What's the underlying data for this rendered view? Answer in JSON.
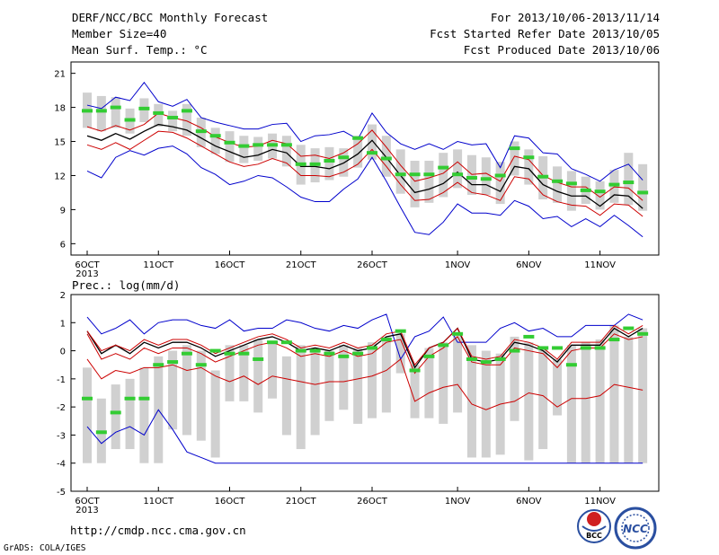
{
  "header": {
    "title": "DERF/NCC/BCC Monthly Forecast",
    "member_size": "Member Size=40",
    "variable": "Mean Surf. Temp.: °C",
    "period": "For 2013/10/06-2013/11/14",
    "fcst_started": "Fcst Started Refer Date 2013/10/05",
    "fcst_produced": "Fcst Produced Date 2013/10/06"
  },
  "footer": {
    "url": "http://cmdp.ncc.cma.gov.cn",
    "grads": "GrADS: COLA/IGES",
    "logo_bcc": "BCC",
    "logo_ncc": "NCC"
  },
  "colors": {
    "envelope": "#0000cc",
    "spread": "#cc0000",
    "mean": "#000000",
    "box": "#d0d0d0",
    "median": "#33cc33"
  },
  "chart_data": [
    {
      "type": "line",
      "title": "",
      "ylabel": "",
      "ylim": [
        5,
        22
      ],
      "yticks": [
        6,
        9,
        12,
        15,
        18,
        21
      ],
      "xlabels": [
        {
          "day": 1,
          "label": "6OCT"
        },
        {
          "day": 6,
          "label": "11OCT"
        },
        {
          "day": 11,
          "label": "16OCT"
        },
        {
          "day": 16,
          "label": "21OCT"
        },
        {
          "day": 21,
          "label": "26OCT"
        },
        {
          "day": 27,
          "label": "1NOV"
        },
        {
          "day": 32,
          "label": "6NOV"
        },
        {
          "day": 37,
          "label": "11NOV"
        }
      ],
      "year_label": "2013",
      "x": [
        1,
        2,
        3,
        4,
        5,
        6,
        7,
        8,
        9,
        10,
        11,
        12,
        13,
        14,
        15,
        16,
        17,
        18,
        19,
        20,
        21,
        22,
        23,
        24,
        25,
        26,
        27,
        28,
        29,
        30,
        31,
        32,
        33,
        34,
        35,
        36,
        37,
        38,
        39,
        40
      ],
      "series": [
        {
          "role": "max",
          "values": [
            12.4,
            11.8,
            13.6,
            14.2,
            13.8,
            14.4,
            14.6,
            13.9,
            12.7,
            12.1,
            11.2,
            11.5,
            12.0,
            11.8,
            11.0,
            10.1,
            9.7,
            9.7,
            10.8,
            11.7,
            13.6,
            11.5,
            9.2,
            7.0,
            6.8,
            7.9,
            9.5,
            8.7,
            8.7,
            8.5,
            9.8,
            9.3,
            8.2,
            8.4,
            7.5,
            8.2,
            7.5,
            8.5,
            7.6,
            6.6
          ]
        },
        {
          "role": "max",
          "values": [
            18.2,
            17.9,
            18.9,
            18.6,
            20.2,
            18.5,
            18.1,
            18.7,
            17.1,
            16.7,
            16.4,
            16.1,
            16.1,
            16.5,
            16.6,
            15.0,
            15.5,
            15.6,
            15.9,
            15.2,
            17.5,
            15.8,
            14.8,
            14.3,
            14.8,
            14.3,
            15.0,
            14.7,
            14.8,
            12.7,
            15.5,
            15.3,
            14.0,
            13.9,
            12.6,
            12.1,
            11.5,
            12.5,
            13.0,
            11.6
          ]
        },
        {
          "role": "mean",
          "values": [
            15.5,
            15.1,
            15.7,
            15.2,
            15.9,
            16.5,
            16.3,
            16.0,
            15.3,
            14.6,
            14.1,
            13.6,
            13.8,
            14.3,
            14.0,
            12.8,
            12.8,
            12.6,
            13.1,
            13.9,
            15.1,
            13.6,
            12.0,
            10.5,
            10.8,
            11.3,
            12.3,
            11.2,
            11.2,
            10.6,
            12.8,
            12.6,
            11.2,
            10.6,
            10.2,
            10.2,
            9.3,
            10.3,
            10.2,
            9.1
          ]
        },
        {
          "role": "spread_high",
          "values": [
            16.3,
            15.9,
            16.4,
            16.0,
            16.5,
            17.5,
            17.1,
            16.8,
            16.2,
            15.4,
            14.9,
            14.5,
            14.6,
            15.1,
            14.8,
            13.7,
            13.8,
            13.5,
            14.0,
            14.8,
            16.0,
            14.5,
            12.9,
            11.5,
            11.8,
            12.2,
            13.2,
            12.1,
            12.2,
            11.5,
            13.7,
            13.4,
            12.0,
            11.4,
            11.0,
            11.0,
            10.1,
            11.0,
            10.9,
            9.8
          ]
        },
        {
          "role": "spread_low",
          "values": [
            14.7,
            14.3,
            14.9,
            14.3,
            15.1,
            15.9,
            15.8,
            15.3,
            14.6,
            13.9,
            13.2,
            12.8,
            13.0,
            13.5,
            13.1,
            12.0,
            12.0,
            11.9,
            12.3,
            13.0,
            14.3,
            12.8,
            11.2,
            9.8,
            9.9,
            10.5,
            11.4,
            10.5,
            10.3,
            9.8,
            11.9,
            11.7,
            10.3,
            9.7,
            9.4,
            9.3,
            8.5,
            9.5,
            9.4,
            8.4
          ]
        }
      ],
      "boxes": {
        "low": [
          16.2,
          15.9,
          16.2,
          15.7,
          16.7,
          16.3,
          15.9,
          15.5,
          14.5,
          13.9,
          13.2,
          13.1,
          13.3,
          13.5,
          12.8,
          11.2,
          11.4,
          11.6,
          11.9,
          12.7,
          13.4,
          11.9,
          10.4,
          9.2,
          9.6,
          10.1,
          10.9,
          10.3,
          10.3,
          9.5,
          12.0,
          11.2,
          9.9,
          9.6,
          8.9,
          9.5,
          9.0,
          9.6,
          9.4,
          8.9
        ],
        "high": [
          19.3,
          19.0,
          18.9,
          17.9,
          18.8,
          18.3,
          17.7,
          18.3,
          17.1,
          16.2,
          15.9,
          15.5,
          15.4,
          15.7,
          15.5,
          14.7,
          14.4,
          14.5,
          14.4,
          15.5,
          16.5,
          15.5,
          14.3,
          13.3,
          13.3,
          14.0,
          14.3,
          13.8,
          13.6,
          13.2,
          15.0,
          14.3,
          13.7,
          12.8,
          12.4,
          11.9,
          11.5,
          12.5,
          14.0,
          13.0
        ],
        "median": [
          17.7,
          17.7,
          18.0,
          16.9,
          17.9,
          17.5,
          17.1,
          17.7,
          15.9,
          15.5,
          14.9,
          14.6,
          14.7,
          14.7,
          14.7,
          13.0,
          13.0,
          13.3,
          13.6,
          15.3,
          14.0,
          13.5,
          12.1,
          12.1,
          12.1,
          12.7,
          12.1,
          11.8,
          11.7,
          12.0,
          14.4,
          13.6,
          11.9,
          11.5,
          11.3,
          10.7,
          10.6,
          11.2,
          11.4,
          10.5
        ]
      }
    },
    {
      "type": "line",
      "title": "Prec.: log(mm/d)",
      "ylabel": "",
      "ylim": [
        -5,
        2
      ],
      "yticks": [
        -5,
        -4,
        -3,
        -2,
        -1,
        0,
        1,
        2
      ],
      "xlabels": [
        {
          "day": 1,
          "label": "6OCT"
        },
        {
          "day": 6,
          "label": "11OCT"
        },
        {
          "day": 11,
          "label": "16OCT"
        },
        {
          "day": 16,
          "label": "21OCT"
        },
        {
          "day": 21,
          "label": "26OCT"
        },
        {
          "day": 27,
          "label": "1NOV"
        },
        {
          "day": 32,
          "label": "6NOV"
        },
        {
          "day": 37,
          "label": "11NOV"
        }
      ],
      "year_label": "2013",
      "x": [
        1,
        2,
        3,
        4,
        5,
        6,
        7,
        8,
        9,
        10,
        11,
        12,
        13,
        14,
        15,
        16,
        17,
        18,
        19,
        20,
        21,
        22,
        23,
        24,
        25,
        26,
        27,
        28,
        29,
        30,
        31,
        32,
        33,
        34,
        35,
        36,
        37,
        38,
        39,
        40
      ],
      "series": [
        {
          "role": "min",
          "values": [
            -2.7,
            -3.3,
            -2.9,
            -2.7,
            -3.0,
            -2.1,
            -2.8,
            -3.6,
            -3.8,
            -4.0,
            -4.0,
            -4.0,
            -4.0,
            -4.0,
            -4.0,
            -4.0,
            -4.0,
            -4.0,
            -4.0,
            -4.0,
            -4.0,
            -4.0,
            -4.0,
            -4.0,
            -4.0,
            -4.0,
            -4.0,
            -4.0,
            -4.0,
            -4.0,
            -4.0,
            -4.0,
            -4.0,
            -4.0,
            -4.0,
            -4.0,
            -4.0,
            -4.0,
            -4.0,
            -4.0
          ]
        },
        {
          "role": "max",
          "values": [
            1.2,
            0.6,
            0.8,
            1.1,
            0.6,
            1.0,
            1.1,
            1.1,
            0.9,
            0.8,
            1.1,
            0.7,
            0.8,
            0.8,
            1.1,
            1.0,
            0.8,
            0.7,
            0.9,
            0.8,
            1.1,
            1.3,
            -0.3,
            0.5,
            0.7,
            1.2,
            0.3,
            0.3,
            0.3,
            0.8,
            1.0,
            0.7,
            0.8,
            0.5,
            0.5,
            0.9,
            0.9,
            0.9,
            1.3,
            1.1
          ]
        },
        {
          "role": "mean",
          "values": [
            0.7,
            -0.1,
            0.2,
            -0.1,
            0.3,
            0.1,
            0.3,
            0.3,
            0.1,
            -0.2,
            0.0,
            0.2,
            0.4,
            0.5,
            0.3,
            0.0,
            0.1,
            0.0,
            0.2,
            0.0,
            0.1,
            0.5,
            0.6,
            -0.6,
            0.1,
            0.3,
            0.8,
            -0.3,
            -0.4,
            -0.3,
            0.3,
            0.2,
            0.0,
            -0.4,
            0.2,
            0.2,
            0.2,
            0.8,
            0.5,
            0.8
          ]
        },
        {
          "role": "spread_high",
          "values": [
            0.7,
            0.0,
            0.2,
            0.0,
            0.4,
            0.2,
            0.4,
            0.4,
            0.2,
            -0.1,
            0.1,
            0.3,
            0.5,
            0.6,
            0.4,
            0.1,
            0.2,
            0.1,
            0.3,
            0.1,
            0.2,
            0.6,
            0.7,
            -0.5,
            0.1,
            0.3,
            0.8,
            -0.2,
            -0.3,
            -0.2,
            0.4,
            0.3,
            0.1,
            -0.3,
            0.3,
            0.3,
            0.3,
            0.9,
            0.6,
            0.9
          ]
        },
        {
          "role": "spread_low",
          "values": [
            0.6,
            -0.3,
            -0.1,
            -0.3,
            0.1,
            -0.1,
            0.1,
            0.1,
            -0.1,
            -0.4,
            -0.2,
            0.0,
            0.2,
            0.3,
            0.1,
            -0.2,
            -0.1,
            -0.2,
            0.0,
            -0.2,
            -0.1,
            0.3,
            0.4,
            -0.8,
            -0.2,
            0.1,
            0.5,
            -0.4,
            -0.5,
            -0.5,
            0.1,
            0.0,
            -0.1,
            -0.6,
            0.0,
            0.1,
            0.1,
            0.6,
            0.4,
            0.5
          ]
        },
        {
          "role": "spread_low",
          "values": [
            -0.3,
            -1.0,
            -0.7,
            -0.8,
            -0.6,
            -0.6,
            -0.5,
            -0.7,
            -0.6,
            -0.9,
            -1.1,
            -0.9,
            -1.2,
            -0.9,
            -1.0,
            -1.1,
            -1.2,
            -1.1,
            -1.1,
            -1.0,
            -0.9,
            -0.7,
            -0.3,
            -1.8,
            -1.5,
            -1.3,
            -1.2,
            -1.9,
            -2.1,
            -1.9,
            -1.8,
            -1.5,
            -1.6,
            -2.0,
            -1.7,
            -1.7,
            -1.6,
            -1.2,
            -1.3,
            -1.4
          ]
        }
      ],
      "boxes": {
        "low": [
          -4.0,
          -4.0,
          -3.5,
          -3.5,
          -4.0,
          -4.0,
          -2.8,
          -3.0,
          -3.2,
          -3.8,
          -1.8,
          -1.8,
          -2.2,
          -1.7,
          -3.0,
          -3.5,
          -3.0,
          -2.5,
          -2.1,
          -2.6,
          -2.4,
          -2.2,
          -0.8,
          -2.4,
          -2.4,
          -2.6,
          -2.2,
          -3.8,
          -3.8,
          -3.7,
          -2.5,
          -3.9,
          -3.5,
          -2.3,
          -4.0,
          -4.0,
          -4.0,
          -4.0,
          -4.0,
          -4.0
        ],
        "high": [
          -0.6,
          -1.7,
          -1.2,
          -1.0,
          -0.6,
          -0.2,
          0.0,
          0.2,
          0.0,
          -0.7,
          0.2,
          0.2,
          0.4,
          0.3,
          -0.2,
          0.2,
          0.1,
          0.0,
          0.2,
          0.1,
          0.3,
          0.5,
          0.6,
          -0.5,
          0.1,
          0.3,
          0.6,
          0.2,
          0.0,
          -0.1,
          0.5,
          0.3,
          0.1,
          -0.3,
          0.2,
          0.3,
          0.4,
          0.9,
          0.5,
          0.8
        ]
      },
      "medians": [
        -1.7,
        -2.9,
        -2.2,
        -1.7,
        -1.7,
        -0.5,
        -0.4,
        -0.1,
        -0.5,
        0.0,
        -0.1,
        -0.1,
        -0.3,
        0.3,
        0.3,
        0.0,
        0.0,
        -0.1,
        -0.2,
        -0.1,
        0.1,
        0.4,
        0.7,
        -0.7,
        -0.2,
        0.2,
        0.6,
        -0.3,
        -0.4,
        -0.3,
        0.0,
        0.5,
        0.1,
        0.1,
        -0.5,
        0.1,
        0.1,
        0.4,
        0.8,
        0.6
      ]
    }
  ]
}
